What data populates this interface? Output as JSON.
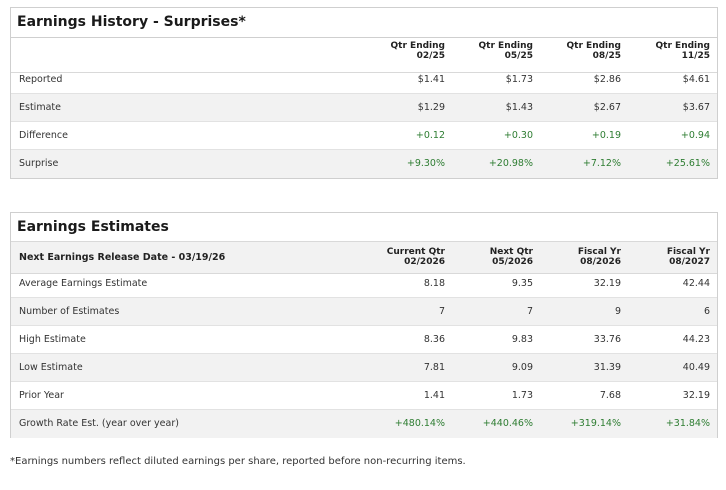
{
  "history": {
    "title": "Earnings History - Surprises*",
    "columns": [
      {
        "line1": "Qtr Ending",
        "line2": "02/25"
      },
      {
        "line1": "Qtr Ending",
        "line2": "05/25"
      },
      {
        "line1": "Qtr Ending",
        "line2": "08/25"
      },
      {
        "line1": "Qtr Ending",
        "line2": "11/25"
      }
    ],
    "rows": [
      {
        "label": "Reported",
        "values": [
          "$1.41",
          "$1.73",
          "$2.86",
          "$4.61"
        ]
      },
      {
        "label": "Estimate",
        "values": [
          "$1.29",
          "$1.43",
          "$2.67",
          "$3.67"
        ]
      },
      {
        "label": "Difference",
        "values": [
          "+0.12",
          "+0.30",
          "+0.19",
          "+0.94"
        ]
      },
      {
        "label": "Surprise",
        "values": [
          "+9.30%",
          "+20.98%",
          "+7.12%",
          "+25.61%"
        ]
      }
    ]
  },
  "estimates": {
    "title": "Earnings Estimates",
    "release_label": "Next Earnings Release Date - 03/19/26",
    "columns": [
      {
        "line1": "Current Qtr",
        "line2": "02/2026"
      },
      {
        "line1": "Next Qtr",
        "line2": "05/2026"
      },
      {
        "line1": "Fiscal Yr",
        "line2": "08/2026"
      },
      {
        "line1": "Fiscal Yr",
        "line2": "08/2027"
      }
    ],
    "rows": [
      {
        "label": "Average Earnings Estimate",
        "values": [
          "8.18",
          "9.35",
          "32.19",
          "42.44"
        ]
      },
      {
        "label": "Number of Estimates",
        "values": [
          "7",
          "7",
          "9",
          "6"
        ]
      },
      {
        "label": "High Estimate",
        "values": [
          "8.36",
          "9.83",
          "33.76",
          "44.23"
        ]
      },
      {
        "label": "Low Estimate",
        "values": [
          "7.81",
          "9.09",
          "31.39",
          "40.49"
        ]
      },
      {
        "label": "Prior Year",
        "values": [
          "1.41",
          "1.73",
          "7.68",
          "32.19"
        ]
      },
      {
        "label": "Growth Rate Est. (year over year)",
        "values": [
          "+480.14%",
          "+440.46%",
          "+319.14%",
          "+31.84%"
        ]
      }
    ]
  },
  "footnote": "*Earnings numbers reflect diluted earnings per share, reported before non-recurring items.",
  "colors": {
    "positive": "#2e7d32",
    "row_shade": "#f2f2f2",
    "border": "#cfcfcf"
  }
}
